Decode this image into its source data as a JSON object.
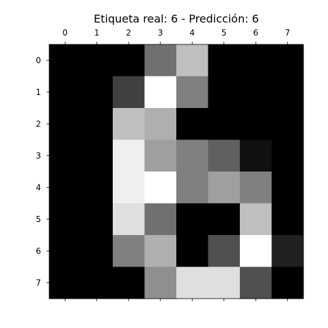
{
  "chart_data": {
    "type": "heatmap",
    "title": "Etiqueta real: 6 - Predicción: 6",
    "xlabel": "",
    "ylabel": "",
    "colormap": "gray",
    "vmin": 0,
    "vmax": 16,
    "x_ticks": [
      "0",
      "1",
      "2",
      "3",
      "4",
      "5",
      "6",
      "7"
    ],
    "y_ticks": [
      "0",
      "1",
      "2",
      "3",
      "4",
      "5",
      "6",
      "7"
    ],
    "x_axis_position": "top",
    "grid": false,
    "values": [
      [
        0,
        0,
        0,
        7,
        12,
        0,
        0,
        0
      ],
      [
        0,
        0,
        4,
        16,
        8,
        0,
        0,
        0
      ],
      [
        0,
        0,
        12,
        11,
        0,
        0,
        0,
        0
      ],
      [
        0,
        0,
        15,
        10,
        8,
        6,
        1,
        0
      ],
      [
        0,
        0,
        15,
        16,
        8,
        10,
        8,
        0
      ],
      [
        0,
        0,
        14,
        7,
        0,
        0,
        12,
        0
      ],
      [
        0,
        0,
        8,
        11,
        0,
        5,
        16,
        2
      ],
      [
        0,
        0,
        0,
        9,
        14,
        14,
        5,
        0
      ]
    ]
  }
}
